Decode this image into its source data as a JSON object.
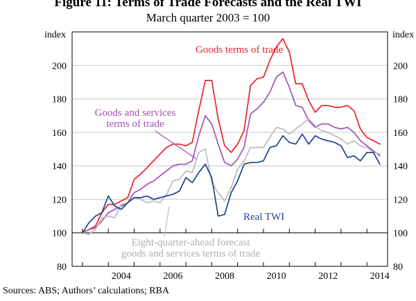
{
  "figure": {
    "title": "Figure 11: Terms of Trade Forecasts and the Real TWI",
    "subtitle": "March quarter 2003 = 100",
    "source": "Sources:   ABS; Authors’ calculations; RBA"
  },
  "chart_data": {
    "type": "line",
    "title": "Figure 11: Terms of Trade Forecasts and the Real TWI",
    "subtitle": "March quarter 2003 = 100",
    "ylabel_left": "index",
    "ylabel_right": "index",
    "ylim": [
      80,
      220
    ],
    "yticks": [
      80,
      100,
      120,
      140,
      160,
      180,
      200
    ],
    "xlim": [
      2002.6,
      2014.8
    ],
    "xticks": [
      2004,
      2006,
      2008,
      2010,
      2012,
      2014
    ],
    "grid": "horizontal",
    "x": [
      2003.0,
      2003.25,
      2003.5,
      2003.75,
      2004.0,
      2004.25,
      2004.5,
      2004.75,
      2005.0,
      2005.25,
      2005.5,
      2005.75,
      2006.0,
      2006.25,
      2006.5,
      2006.75,
      2007.0,
      2007.25,
      2007.5,
      2007.75,
      2008.0,
      2008.25,
      2008.5,
      2008.75,
      2009.0,
      2009.25,
      2009.5,
      2009.75,
      2010.0,
      2010.25,
      2010.5,
      2010.75,
      2011.0,
      2011.25,
      2011.5,
      2011.75,
      2012.0,
      2012.25,
      2012.5,
      2012.75,
      2013.0,
      2013.25,
      2013.5,
      2013.75,
      2014.0,
      2014.25,
      2014.5
    ],
    "series": [
      {
        "name": "Goods terms of trade",
        "color": "#e8202a",
        "values": [
          100,
          102,
          104,
          112,
          117,
          117,
          119,
          121,
          132,
          135,
          139,
          143,
          147,
          151,
          153,
          153,
          152,
          154,
          173,
          191,
          191,
          168,
          152,
          148,
          153,
          161,
          188,
          192,
          193,
          203,
          211,
          216,
          208,
          189,
          189,
          179,
          172,
          176,
          176,
          175,
          175,
          176,
          173,
          162,
          157,
          155,
          153
        ]
      },
      {
        "name": "Goods and services terms of trade",
        "color": "#a250b4",
        "values": [
          100,
          102,
          103,
          107,
          112,
          114,
          116,
          118,
          124,
          126,
          129,
          131,
          134,
          137,
          140,
          141,
          141,
          143,
          158,
          170,
          165,
          153,
          142,
          140,
          144,
          151,
          171,
          174,
          178,
          184,
          193,
          196,
          187,
          176,
          175,
          167,
          163,
          165,
          165,
          163,
          162,
          163,
          160,
          155,
          152,
          149,
          146
        ]
      },
      {
        "name": "Eight-quarter-ahead forecast goods and services terms of trade",
        "color": "#bdbdbd",
        "values": [
          100,
          99,
          102,
          109,
          110,
          109,
          117,
          118,
          121,
          120,
          118,
          119,
          118,
          123,
          131,
          132,
          137,
          136,
          148,
          150,
          130,
          124,
          119,
          127,
          138,
          143,
          151,
          151,
          151,
          157,
          163,
          162,
          159,
          162,
          165,
          168,
          164,
          161,
          160,
          158,
          156,
          153,
          155,
          152,
          151,
          148,
          147
        ]
      },
      {
        "name": "Real TWI",
        "color": "#1f3f8c",
        "values": [
          100,
          106,
          110,
          112,
          122,
          116,
          114,
          118,
          121,
          121,
          122,
          120,
          121,
          122,
          123,
          125,
          133,
          130,
          136,
          141,
          133,
          110,
          111,
          124,
          131,
          141,
          142,
          142,
          143,
          151,
          152,
          158,
          154,
          153,
          159,
          153,
          158,
          156,
          155,
          154,
          152,
          145,
          146,
          143,
          148,
          148,
          141
        ]
      }
    ],
    "annotations": [
      {
        "text": "Goods terms of trade",
        "series": 0
      },
      {
        "text": "Goods and services terms of trade",
        "lines": [
          "Goods and services",
          "terms of trade"
        ],
        "series": 1
      },
      {
        "text": "Real TWI",
        "series": 3
      },
      {
        "text": "Eight-quarter-ahead forecast goods and services terms of trade",
        "lines": [
          "Eight-quarter-ahead forecast",
          "goods and services terms of trade"
        ],
        "series": 2
      }
    ]
  }
}
